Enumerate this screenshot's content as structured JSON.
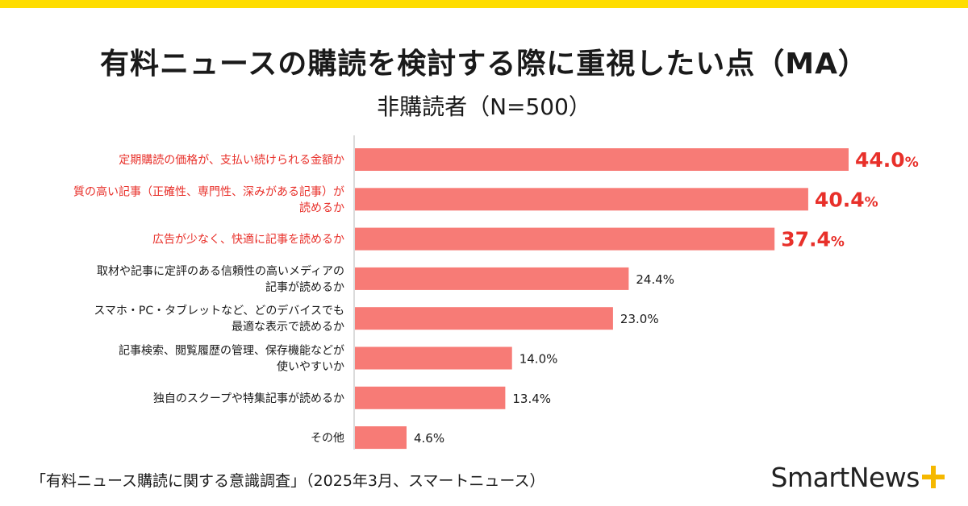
{
  "colors": {
    "bar": "#f77b76",
    "highlight": "#e8302a",
    "normal_text": "#1a1a1a",
    "accent_band": "#ffdd00",
    "logo_plus": "#f5b800"
  },
  "header": {
    "title": "有料ニュースの購読を検討する際に重視したい点（MA）",
    "subtitle": "非購読者（N=500）"
  },
  "chart_data": {
    "type": "bar",
    "orientation": "horizontal",
    "categories": [
      [
        "定期購読の価格が、支払い続けられる金額か"
      ],
      [
        "質の高い記事（正確性、専門性、深みがある記事）が",
        "読めるか"
      ],
      [
        "広告が少なく、快適に記事を読めるか"
      ],
      [
        "取材や記事に定評のある信頼性の高いメディアの",
        "記事が読めるか"
      ],
      [
        "スマホ・PC・タブレットなど、どのデバイスでも",
        "最適な表示で読めるか"
      ],
      [
        "記事検索、閲覧履歴の管理、保存機能などが",
        "使いやすいか"
      ],
      [
        "独自のスクープや特集記事が読めるか"
      ],
      [
        "その他"
      ]
    ],
    "values": [
      44.0,
      40.4,
      37.4,
      24.4,
      23.0,
      14.0,
      13.4,
      4.6
    ],
    "highlighted": [
      true,
      true,
      true,
      false,
      false,
      false,
      false,
      false
    ],
    "unit": "%",
    "xlim": [
      0,
      44.0
    ],
    "grid": false,
    "legend": "none"
  },
  "footer": {
    "source": "「有料ニュース購読に関する意識調査」（2025年3月、スマートニュース）",
    "logo_text": "SmartNews"
  }
}
